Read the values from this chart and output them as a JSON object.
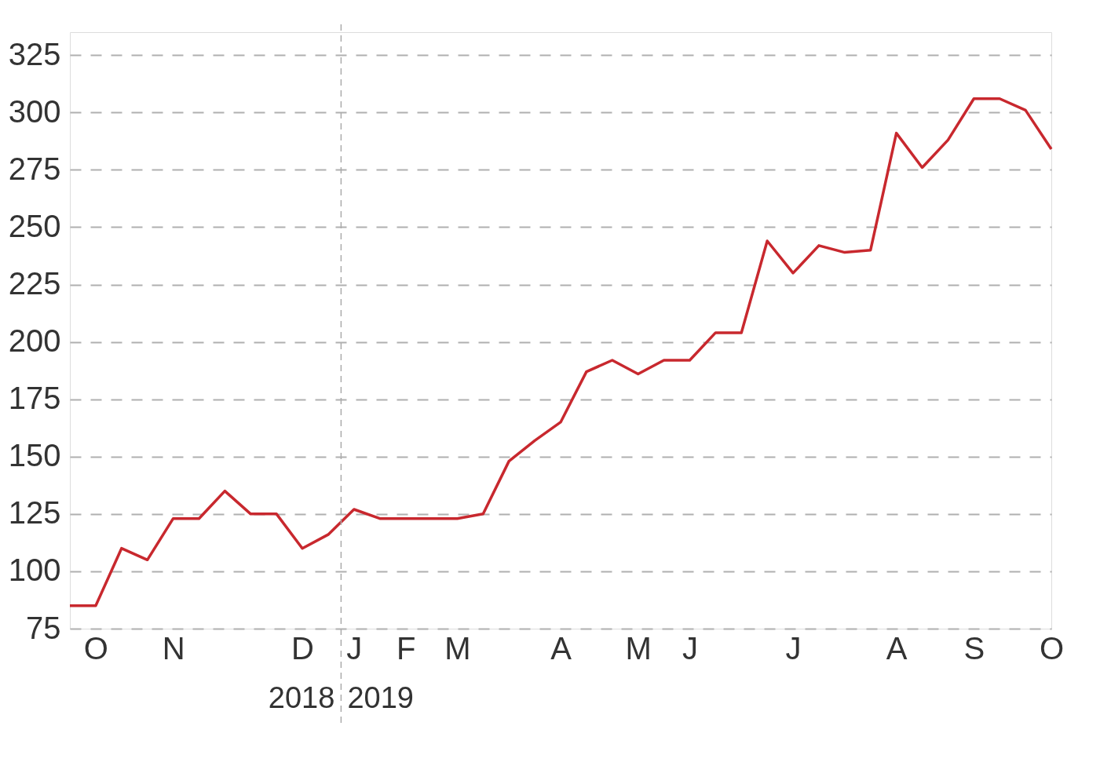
{
  "chart_data": {
    "type": "line",
    "categories": [
      null,
      "O",
      null,
      null,
      "N",
      null,
      null,
      null,
      null,
      "D",
      null,
      "J",
      null,
      "F",
      null,
      "M",
      null,
      null,
      null,
      "A",
      null,
      null,
      "M",
      null,
      "J",
      null,
      null,
      null,
      "J",
      null,
      null,
      null,
      "A",
      null,
      null,
      "S",
      null,
      null,
      "O"
    ],
    "series": [
      {
        "color": "#c8282e",
        "values": [
          85,
          85,
          110,
          105,
          123,
          123,
          135,
          125,
          125,
          110,
          116,
          127,
          123,
          123,
          123,
          123,
          125,
          148,
          157,
          165,
          187,
          192,
          186,
          192,
          192,
          204,
          204,
          244,
          230,
          242,
          239,
          240,
          291,
          276,
          288,
          306,
          306,
          301,
          284
        ]
      }
    ],
    "ylim": [
      75,
      335
    ],
    "yticks": [
      75,
      100,
      125,
      150,
      175,
      200,
      225,
      250,
      275,
      300,
      325
    ],
    "ref_lines": [
      {
        "axis": "x",
        "value": "J",
        "label": null,
        "color": "#aaaaaa",
        "line_style": "dashed"
      }
    ],
    "annotations": [
      "2018",
      "2019"
    ],
    "grid": "y",
    "marker": "none",
    "line_style": "solid",
    "legend": false
  }
}
